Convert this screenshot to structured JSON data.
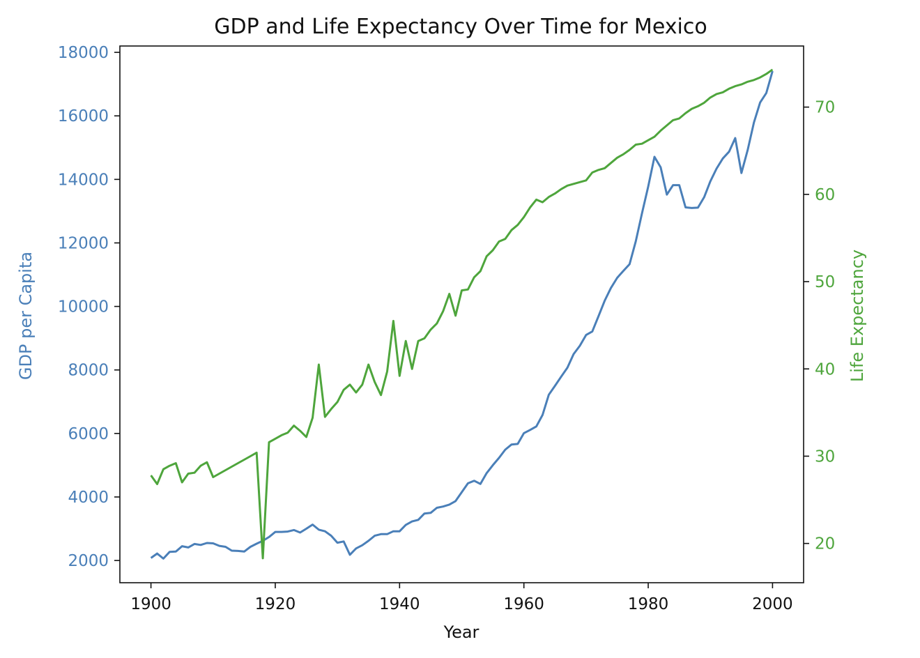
{
  "chart_data": {
    "type": "line",
    "title": "GDP and Life Expectancy Over Time for Mexico",
    "xlabel": "Year",
    "ylabel_left": "GDP per Capita",
    "ylabel_right": "Life Expectancy",
    "xlim": [
      1895,
      2005
    ],
    "ylim_left": [
      1300,
      18200
    ],
    "ylim_right": [
      15.5,
      77
    ],
    "x_ticks": [
      1900,
      1920,
      1940,
      1960,
      1980,
      2000
    ],
    "y_left_ticks": [
      2000,
      4000,
      6000,
      8000,
      10000,
      12000,
      14000,
      16000,
      18000
    ],
    "y_right_ticks": [
      20,
      30,
      40,
      50,
      60,
      70
    ],
    "grid": false,
    "colors": {
      "gdp": "#4a7fb8",
      "life": "#4ea53c",
      "axis": "#111111"
    },
    "x": [
      1900,
      1901,
      1902,
      1903,
      1904,
      1905,
      1906,
      1907,
      1908,
      1909,
      1910,
      1911,
      1912,
      1913,
      1914,
      1915,
      1916,
      1917,
      1918,
      1919,
      1920,
      1921,
      1922,
      1923,
      1924,
      1925,
      1926,
      1927,
      1928,
      1929,
      1930,
      1931,
      1932,
      1933,
      1934,
      1935,
      1936,
      1937,
      1938,
      1939,
      1940,
      1941,
      1942,
      1943,
      1944,
      1945,
      1946,
      1947,
      1948,
      1949,
      1950,
      1951,
      1952,
      1953,
      1954,
      1955,
      1956,
      1957,
      1958,
      1959,
      1960,
      1961,
      1962,
      1963,
      1964,
      1965,
      1966,
      1967,
      1968,
      1969,
      1970,
      1971,
      1972,
      1973,
      1974,
      1975,
      1976,
      1977,
      1978,
      1979,
      1980,
      1981,
      1982,
      1983,
      1984,
      1985,
      1986,
      1987,
      1988,
      1989,
      1990,
      1991,
      1992,
      1993,
      1994,
      1995,
      1996,
      1997,
      1998,
      1999,
      2000
    ],
    "series": [
      {
        "key": "gdp",
        "axis": "left",
        "values": [
          2080,
          2220,
          2060,
          2270,
          2280,
          2450,
          2410,
          2520,
          2490,
          2550,
          2540,
          2460,
          2430,
          2310,
          2300,
          2280,
          2430,
          2530,
          2620,
          2740,
          2900,
          2900,
          2910,
          2960,
          2880,
          3000,
          3130,
          2970,
          2920,
          2780,
          2560,
          2600,
          2180,
          2380,
          2480,
          2620,
          2780,
          2830,
          2830,
          2920,
          2920,
          3120,
          3230,
          3280,
          3480,
          3500,
          3660,
          3700,
          3760,
          3870,
          4150,
          4430,
          4510,
          4410,
          4750,
          5000,
          5230,
          5490,
          5650,
          5670,
          6010,
          6110,
          6220,
          6580,
          7220,
          7500,
          7790,
          8070,
          8500,
          8760,
          9100,
          9210,
          9690,
          10180,
          10580,
          10900,
          11120,
          11330,
          12050,
          12930,
          13770,
          14710,
          14380,
          13520,
          13820,
          13820,
          13120,
          13100,
          13110,
          13440,
          13940,
          14340,
          14660,
          14870,
          15300,
          14200,
          14920,
          15790,
          16420,
          16720,
          17410
        ]
      },
      {
        "key": "life",
        "axis": "right",
        "values": [
          27.8,
          26.8,
          28.5,
          28.9,
          29.2,
          27.0,
          28.0,
          28.1,
          28.9,
          29.3,
          27.6,
          28.0,
          28.4,
          28.8,
          29.2,
          29.6,
          30.0,
          30.4,
          18.3,
          31.6,
          32.0,
          32.4,
          32.7,
          33.5,
          32.9,
          32.2,
          34.4,
          40.5,
          34.5,
          35.4,
          36.2,
          37.6,
          38.2,
          37.3,
          38.2,
          40.5,
          38.5,
          37.0,
          39.7,
          45.5,
          39.2,
          43.2,
          40.0,
          43.2,
          43.5,
          44.5,
          45.2,
          46.6,
          48.6,
          46.1,
          49.0,
          49.1,
          50.5,
          51.2,
          52.9,
          53.6,
          54.6,
          54.9,
          55.9,
          56.5,
          57.4,
          58.5,
          59.4,
          59.1,
          59.7,
          60.1,
          60.6,
          61.0,
          61.2,
          61.4,
          61.6,
          62.5,
          62.8,
          63.0,
          63.6,
          64.2,
          64.6,
          65.1,
          65.7,
          65.8,
          66.2,
          66.6,
          67.3,
          67.9,
          68.5,
          68.7,
          69.3,
          69.8,
          70.1,
          70.5,
          71.1,
          71.5,
          71.7,
          72.1,
          72.4,
          72.6,
          72.9,
          73.1,
          73.4,
          73.8,
          74.3
        ]
      }
    ]
  }
}
